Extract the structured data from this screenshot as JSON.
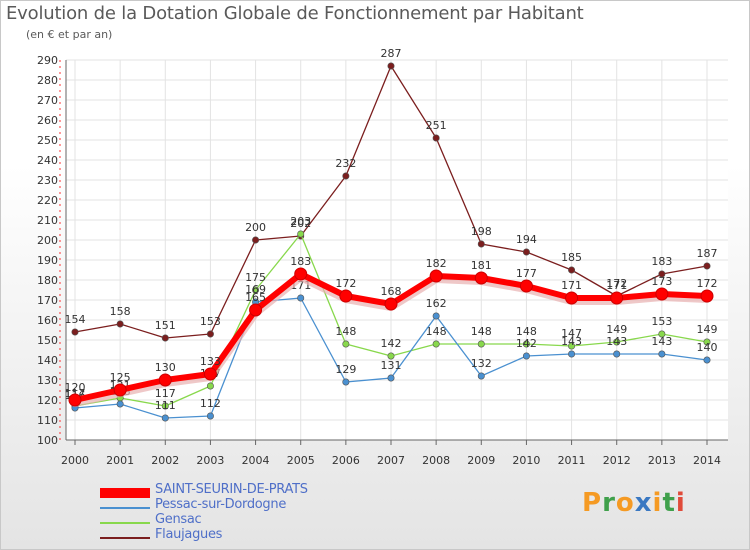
{
  "title": "Evolution de la Dotation Globale de Fonctionnement par Habitant",
  "subtitle": "(en € et par an)",
  "logo": {
    "text": "Proxiti",
    "colors": [
      "#f59a23",
      "#3fa04b",
      "#f59a23",
      "#3a78c2",
      "#f59a23",
      "#3fa04b",
      "#e04b3a"
    ]
  },
  "chart_data": {
    "type": "line",
    "title": "Evolution de la Dotation Globale de Fonctionnement par Habitant",
    "subtitle": "(en € et par an)",
    "xlabel": "",
    "ylabel": "",
    "x": [
      "2000",
      "2001",
      "2002",
      "2003",
      "2004",
      "2005",
      "2006",
      "2007",
      "2008",
      "2009",
      "2010",
      "2011",
      "2012",
      "2013",
      "2014"
    ],
    "ylim": [
      100,
      290
    ],
    "yticks": [
      100,
      110,
      120,
      130,
      140,
      150,
      160,
      170,
      180,
      190,
      200,
      210,
      220,
      230,
      240,
      250,
      260,
      270,
      280,
      290
    ],
    "grid": true,
    "legend_position": "bottom-left",
    "series": [
      {
        "name": "SAINT-SEURIN-DE-PRATS",
        "color": "#ff0000",
        "values": [
          120,
          125,
          130,
          133,
          165,
          183,
          172,
          168,
          182,
          181,
          177,
          171,
          171,
          173,
          172
        ],
        "labels": [
          "120",
          "125",
          "130",
          "133",
          "165",
          "183",
          "172",
          "168",
          "182",
          "181",
          "177",
          "171",
          "171",
          "173",
          "172"
        ]
      },
      {
        "name": "Pessac-sur-Dordogne",
        "color": "#4a90d0",
        "values": [
          116,
          118,
          111,
          112,
          169,
          171,
          129,
          131,
          162,
          132,
          142,
          143,
          143,
          143,
          140
        ],
        "labels": [
          "116",
          "118",
          "111",
          "112",
          "169",
          "171",
          "129",
          "131",
          "162",
          "132",
          "142",
          "143",
          "143",
          "143",
          "140"
        ]
      },
      {
        "name": "Gensac",
        "color": "#88d84c",
        "values": [
          117,
          121,
          117,
          127,
          175,
          203,
          148,
          142,
          148,
          148,
          148,
          147,
          149,
          153,
          149
        ],
        "labels": [
          "117",
          "121",
          "117",
          "127",
          "175",
          "203",
          "148",
          "142",
          "148",
          "148",
          "148",
          "147",
          "149",
          "153",
          "149"
        ]
      },
      {
        "name": "Flaujagues",
        "color": "#7b1e1e",
        "values": [
          154,
          158,
          151,
          153,
          200,
          202,
          232,
          287,
          251,
          198,
          194,
          185,
          172,
          183,
          187
        ],
        "labels": [
          "154",
          "158",
          "151",
          "153",
          "200",
          "202",
          "232",
          "287",
          "251",
          "198",
          "194",
          "185",
          "172",
          "183",
          "187"
        ]
      }
    ]
  }
}
